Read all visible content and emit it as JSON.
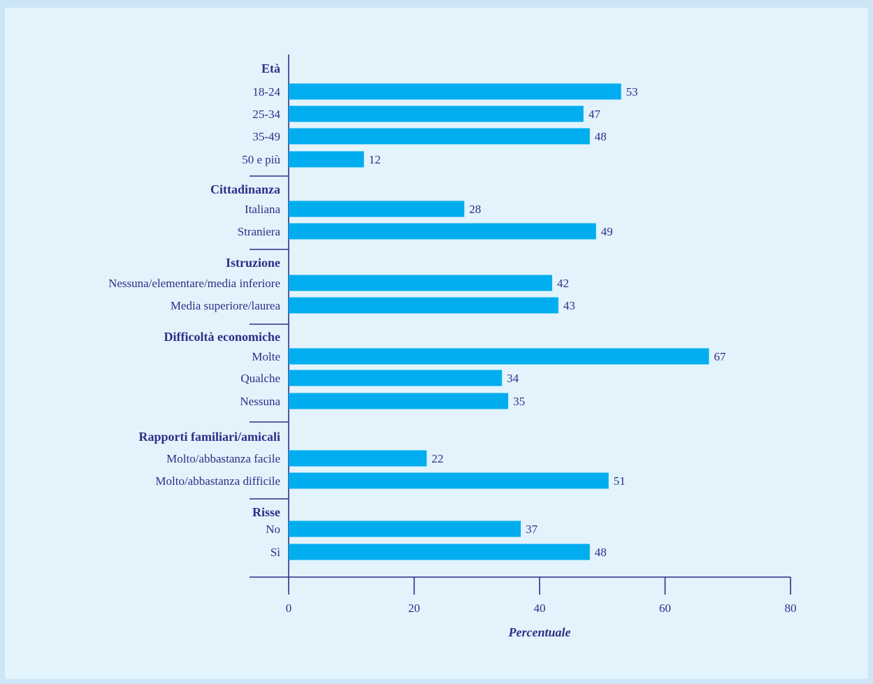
{
  "chart_data": {
    "type": "bar",
    "orientation": "horizontal",
    "xlabel": "Percentuale",
    "xlim": [
      0,
      80
    ],
    "xticks": [
      0,
      20,
      40,
      60,
      80
    ],
    "grid": false,
    "legend": "none",
    "bar_color": "#00adee",
    "text_color": "#2e2e86",
    "groups": [
      {
        "label": "Età",
        "items": [
          {
            "label": "18-24",
            "value": 53
          },
          {
            "label": "25-34",
            "value": 47
          },
          {
            "label": "35-49",
            "value": 48
          },
          {
            "label": "50 e più",
            "value": 12
          }
        ]
      },
      {
        "label": "Cittadinanza",
        "items": [
          {
            "label": "Italiana",
            "value": 28
          },
          {
            "label": "Straniera",
            "value": 49
          }
        ]
      },
      {
        "label": "Istruzione",
        "items": [
          {
            "label": "Nessuna/elementare/media inferiore",
            "value": 42
          },
          {
            "label": "Media superiore/laurea",
            "value": 43
          }
        ]
      },
      {
        "label": "Difficoltà economiche",
        "items": [
          {
            "label": "Molte",
            "value": 67
          },
          {
            "label": "Qualche",
            "value": 34
          },
          {
            "label": "Nessuna",
            "value": 35
          }
        ]
      },
      {
        "label": "Rapporti familiari/amicali",
        "items": [
          {
            "label": "Molto/abbastanza facile",
            "value": 22
          },
          {
            "label": "Molto/abbastanza difficile",
            "value": 51
          }
        ]
      },
      {
        "label": "Risse",
        "items": [
          {
            "label": "No",
            "value": 37
          },
          {
            "label": "Sì",
            "value": 48
          }
        ]
      }
    ]
  }
}
